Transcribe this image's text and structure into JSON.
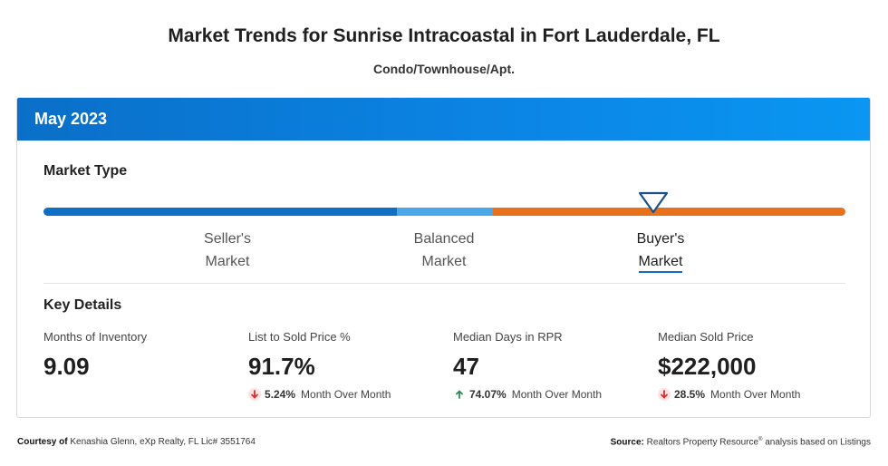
{
  "page": {
    "title": "Market Trends for Sunrise Intracoastal in Fort Lauderdale, FL",
    "subtitle": "Condo/Townhouse/Apt."
  },
  "card": {
    "period": "May 2023",
    "market_type": {
      "heading": "Market Type",
      "segments": [
        {
          "line1": "Seller's",
          "line2": "Market"
        },
        {
          "line1": "Balanced",
          "line2": "Market"
        },
        {
          "line1": "Buyer's",
          "line2": "Market"
        }
      ],
      "selected": "Buyer's Market",
      "colors": {
        "seller": "#0e6fc3",
        "balanced": "#4aa8ea",
        "buyer": "#e8721c"
      }
    },
    "key_details": {
      "heading": "Key Details",
      "metrics": [
        {
          "label": "Months of Inventory",
          "value": "9.09",
          "change": "",
          "change_label": "",
          "direction": ""
        },
        {
          "label": "List to Sold Price %",
          "value": "91.7%",
          "change": "5.24%",
          "change_label": "Month Over Month",
          "direction": "down"
        },
        {
          "label": "Median Days in RPR",
          "value": "47",
          "change": "74.07%",
          "change_label": "Month Over Month",
          "direction": "up"
        },
        {
          "label": "Median Sold Price",
          "value": "$222,000",
          "change": "28.5%",
          "change_label": "Month Over Month",
          "direction": "down"
        }
      ]
    }
  },
  "footer": {
    "courtesy_label": "Courtesy of",
    "courtesy_text": "Kenashia Glenn, eXp Realty, FL Lic# 3551764",
    "source_label": "Source:",
    "source_text_a": "Realtors Property Resource",
    "source_reg": "®",
    "source_text_b": "analysis based on Listings"
  },
  "icons": {
    "down_arrow": "arrow-down-icon",
    "up_arrow": "arrow-up-icon",
    "marker": "triangle-marker-icon"
  }
}
